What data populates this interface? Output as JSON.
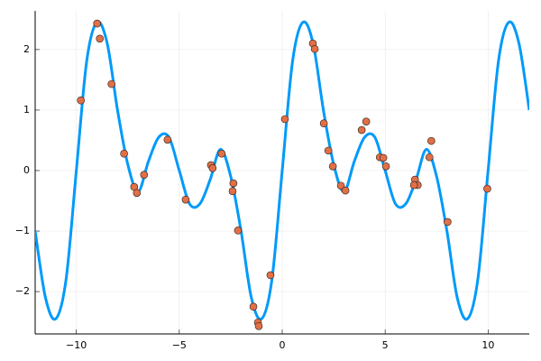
{
  "chart_data": {
    "type": "line",
    "xlim": [
      -12,
      12
    ],
    "ylim": [
      -2.7,
      2.64
    ],
    "xticks": [
      {
        "value": -10,
        "label": "−10"
      },
      {
        "value": -5,
        "label": "−5"
      },
      0,
      5,
      10
    ],
    "yticks": [
      {
        "value": -2,
        "label": "−2"
      },
      {
        "value": -1,
        "label": "−1"
      },
      0,
      1,
      2
    ],
    "grid": true,
    "series": [
      {
        "type": "line",
        "color": "#009af9",
        "x": [
          -12,
          -11.5,
          -11,
          -10.5,
          -10,
          -9.5,
          -9,
          -8.5,
          -8,
          -7.5,
          -7,
          -6.5,
          -6,
          -5.5,
          -5,
          -4.5,
          -4,
          -3.5,
          -3,
          -2.5,
          -2,
          -1.5,
          -1,
          -0.5,
          0,
          0.5,
          1,
          1.5,
          2,
          2.5,
          3,
          3.5,
          4,
          4.5,
          5,
          5.5,
          6,
          6.5,
          7,
          7.5,
          8,
          8.5,
          9,
          9.5,
          10,
          10.5,
          11,
          11.5,
          12
        ],
        "values": [
          -1.0,
          -2.1,
          -2.45,
          -1.8,
          0,
          1.8,
          2.45,
          2.1,
          1.0,
          0.1,
          -0.35,
          0.15,
          0.55,
          0.55,
          0,
          -0.55,
          -0.55,
          -0.15,
          0.35,
          -0.1,
          -1.0,
          -2.1,
          -2.45,
          -1.8,
          0,
          1.8,
          2.45,
          2.1,
          1.0,
          0.1,
          -0.35,
          0.15,
          0.55,
          0.55,
          0,
          -0.55,
          -0.55,
          -0.15,
          0.35,
          -0.1,
          -1.0,
          -2.1,
          -2.45,
          -1.8,
          0,
          1.8,
          2.45,
          2.1,
          1.0
        ]
      },
      {
        "type": "scatter",
        "color": "#e26f46",
        "x": [
          -9.78,
          -8.99,
          -8.86,
          -8.29,
          -7.68,
          -7.19,
          -7.06,
          -6.71,
          -5.57,
          -4.69,
          -3.46,
          -3.38,
          -2.94,
          -2.37,
          -2.41,
          -2.15,
          -1.4,
          -1.18,
          -1.14,
          -0.57,
          0.13,
          1.49,
          1.58,
          2.02,
          2.24,
          2.46,
          2.85,
          3.07,
          3.86,
          4.08,
          4.74,
          4.91,
          5.04,
          6.45,
          6.58,
          6.4,
          7.15,
          7.24,
          8.03,
          9.96
        ],
        "values": [
          1.16,
          2.43,
          2.18,
          1.43,
          0.28,
          -0.27,
          -0.37,
          -0.07,
          0.51,
          -0.48,
          0.09,
          0.04,
          0.28,
          -0.21,
          -0.34,
          -0.99,
          -2.25,
          -2.51,
          -2.57,
          -1.73,
          0.85,
          2.1,
          2.01,
          0.78,
          0.33,
          0.07,
          -0.25,
          -0.33,
          0.67,
          0.81,
          0.22,
          0.21,
          0.07,
          -0.15,
          -0.24,
          -0.24,
          0.22,
          0.49,
          -0.85,
          -0.3
        ]
      }
    ]
  }
}
